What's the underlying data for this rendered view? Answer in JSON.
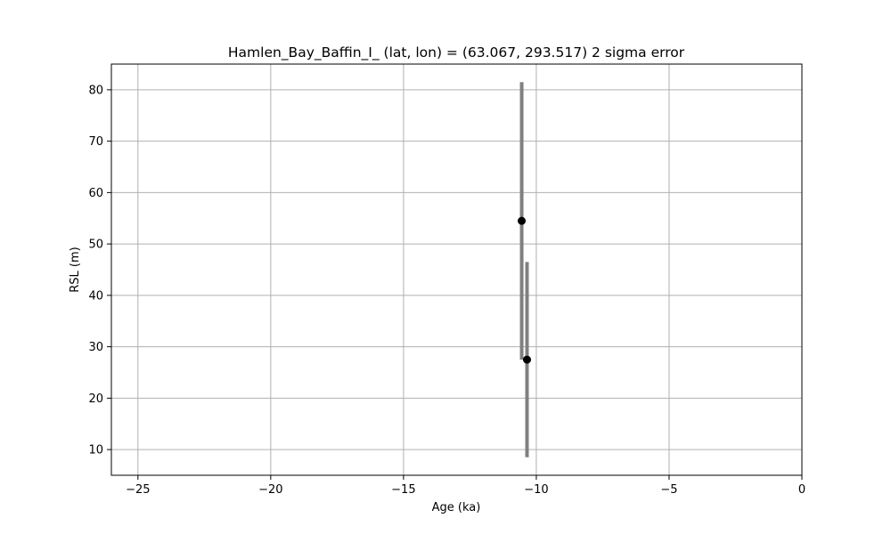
{
  "chart_data": {
    "type": "scatter",
    "title": "Hamlen_Bay_Baffin_I_ (lat, lon) = (63.067, 293.517)  2 sigma error",
    "xlabel": "Age (ka)",
    "ylabel": "RSL (m)",
    "xlim": [
      -26,
      0
    ],
    "ylim": [
      5,
      85
    ],
    "xticks": [
      -25,
      -20,
      -15,
      -10,
      -5,
      0
    ],
    "xtick_labels": [
      "−25",
      "−20",
      "−15",
      "−10",
      "−5",
      "0"
    ],
    "yticks": [
      10,
      20,
      30,
      40,
      50,
      60,
      70,
      80
    ],
    "ytick_labels": [
      "10",
      "20",
      "30",
      "40",
      "50",
      "60",
      "70",
      "80"
    ],
    "grid": true,
    "points": [
      {
        "x": -10.55,
        "y": 54.5,
        "y_low": 27.5,
        "y_high": 81.5
      },
      {
        "x": -10.35,
        "y": 27.5,
        "y_low": 8.5,
        "y_high": 46.5
      }
    ],
    "colors": {
      "point": "#000000",
      "error_bar": "#808080",
      "grid": "#b0b0b0",
      "axes": "#000000"
    }
  }
}
